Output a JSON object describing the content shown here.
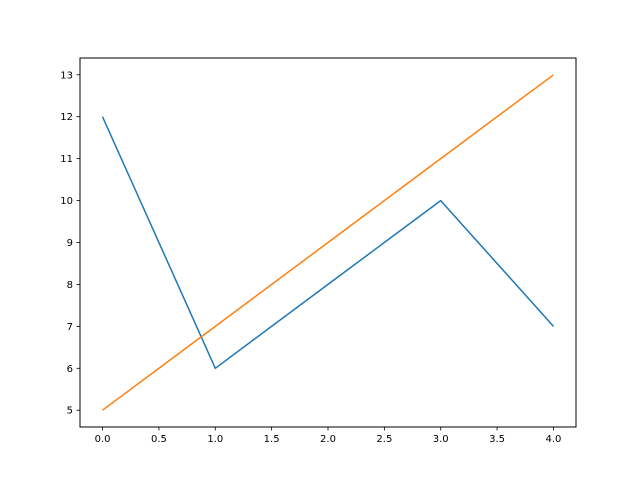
{
  "chart_data": {
    "type": "line",
    "title": "",
    "xlabel": "",
    "ylabel": "",
    "xlim": [
      -0.2,
      4.2
    ],
    "ylim": [
      4.6,
      13.4
    ],
    "grid": false,
    "legend": null,
    "x": [
      0,
      1,
      2,
      3,
      4
    ],
    "xticks": [
      0.0,
      0.5,
      1.0,
      1.5,
      2.0,
      2.5,
      3.0,
      3.5,
      4.0
    ],
    "xtick_labels": [
      "0.0",
      "0.5",
      "1.0",
      "1.5",
      "2.0",
      "2.5",
      "3.0",
      "3.5",
      "4.0"
    ],
    "yticks": [
      5,
      6,
      7,
      8,
      9,
      10,
      11,
      12,
      13
    ],
    "ytick_labels": [
      "5",
      "6",
      "7",
      "8",
      "9",
      "10",
      "11",
      "12",
      "13"
    ],
    "series": [
      {
        "values": [
          12,
          6,
          8,
          10,
          7
        ],
        "color": "#1f77b4"
      },
      {
        "values": [
          5,
          7,
          9,
          11,
          13
        ],
        "color": "#ff7f0e"
      }
    ]
  }
}
